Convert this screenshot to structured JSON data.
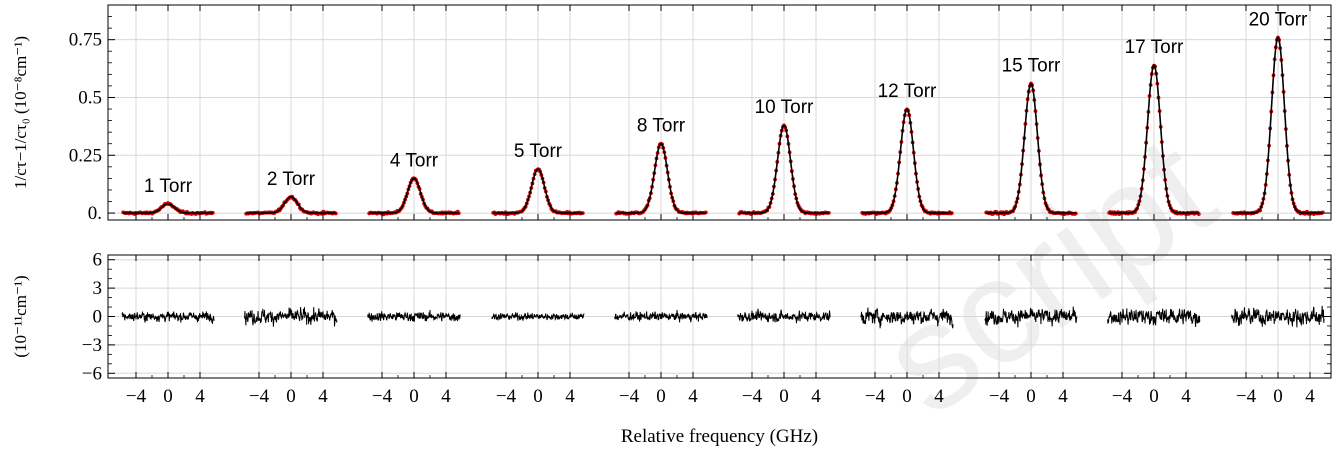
{
  "chart_data": [
    {
      "type": "line",
      "panel": "top",
      "ylabel": "1/cτ−1/cτ₀ (10⁻⁸cm⁻¹)",
      "yticks": [
        0,
        0.25,
        0.5,
        0.75
      ],
      "ytick_labels": [
        "0.",
        "0.25",
        "0.5",
        "0.75"
      ],
      "ylim": [
        -0.03,
        0.9
      ],
      "grid": true,
      "segment_xlim": [
        -6,
        6
      ],
      "series": [
        {
          "label": "1 Torr",
          "peak": 0.04,
          "hwhm": 0.95
        },
        {
          "label": "2 Torr",
          "peak": 0.07,
          "hwhm": 0.95
        },
        {
          "label": "4 Torr",
          "peak": 0.15,
          "hwhm": 0.95
        },
        {
          "label": "5 Torr",
          "peak": 0.19,
          "hwhm": 0.95
        },
        {
          "label": "8 Torr",
          "peak": 0.3,
          "hwhm": 0.95
        },
        {
          "label": "10 Torr",
          "peak": 0.38,
          "hwhm": 0.95
        },
        {
          "label": "12 Torr",
          "peak": 0.45,
          "hwhm": 0.95
        },
        {
          "label": "15 Torr",
          "peak": 0.56,
          "hwhm": 0.95
        },
        {
          "label": "17 Torr",
          "peak": 0.64,
          "hwhm": 0.95
        },
        {
          "label": "20 Torr",
          "peak": 0.76,
          "hwhm": 0.95
        }
      ],
      "data_color": "#cc0000",
      "fit_color": "#000000"
    },
    {
      "type": "line",
      "panel": "bottom",
      "ylabel": "(10⁻¹¹cm⁻¹)",
      "yticks": [
        -6,
        -3,
        0,
        3,
        6
      ],
      "ytick_labels": [
        "−6",
        "−3",
        "0",
        "3",
        "6"
      ],
      "ylim": [
        -6.5,
        6.5
      ],
      "grid": true,
      "residual_amplitude": [
        0.6,
        0.9,
        0.6,
        0.45,
        0.55,
        0.65,
        0.95,
        0.95,
        1.0,
        1.0
      ],
      "xticks": [
        -4,
        0,
        4
      ],
      "xtick_labels": [
        "−4",
        "0",
        "4"
      ],
      "xlabel": "Relative frequency (GHz)",
      "line_color": "#000000"
    }
  ]
}
